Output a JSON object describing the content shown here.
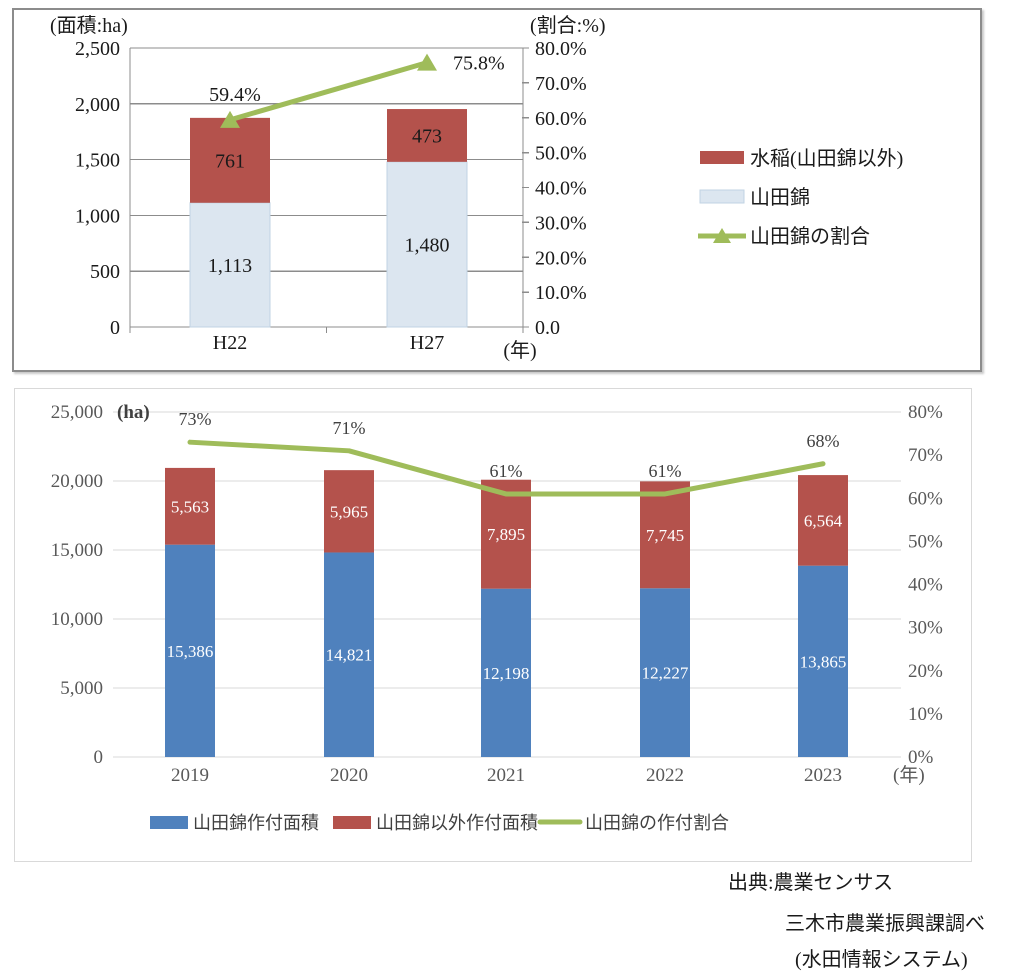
{
  "colors": {
    "red": "#b4524c",
    "blue": "#4f81bd",
    "light_blue": "#dce6f0",
    "light_blue_border": "#c1d3e3",
    "green": "#9fbc5a",
    "grid_dark": "#8c8c8c",
    "grid_light": "#d9d9d9",
    "axis_gray": "#595959",
    "label_gray": "#404040",
    "text_black": "#1a1a1a",
    "bar_label_white": "#ffffff"
  },
  "chart_data": [
    {
      "id": "heisei-comparison",
      "type": "bar",
      "categories": [
        "H22",
        "H27"
      ],
      "series": [
        {
          "name": "山田錦",
          "kind": "bar",
          "color_key": "light_blue",
          "values": [
            1113,
            1480
          ],
          "labels": [
            "1,113",
            "1,480"
          ]
        },
        {
          "name": "水稲(山田錦以外)",
          "kind": "bar",
          "color_key": "red",
          "values": [
            761,
            473
          ],
          "labels": [
            "761",
            "473"
          ]
        },
        {
          "name": "山田錦の割合",
          "kind": "line",
          "color_key": "green",
          "values": [
            59.4,
            75.8
          ],
          "labels": [
            "59.4%",
            "75.8%"
          ]
        }
      ],
      "left_axis": {
        "title": "(面積:ha)",
        "min": 0,
        "max": 2500,
        "step": 500,
        "ticks": [
          "0",
          "500",
          "1,000",
          "1,500",
          "2,000",
          "2,500"
        ]
      },
      "right_axis": {
        "title": "(割合:%)",
        "min": 0,
        "max": 80,
        "step": 10,
        "ticks": [
          "0.0%",
          "10.0%",
          "20.0%",
          "30.0%",
          "40.0%",
          "50.0%",
          "60.0%",
          "70.0%",
          "80.0%"
        ]
      },
      "x_axis": {
        "title": "(年)"
      },
      "grid": true,
      "legend_position": "right",
      "legend": [
        {
          "label": "水稲(山田錦以外)",
          "swatch": "bar",
          "color_key": "red"
        },
        {
          "label": "山田錦",
          "swatch": "bar",
          "color_key": "light_blue"
        },
        {
          "label": "山田錦の割合",
          "swatch": "line-triangle",
          "color_key": "green"
        }
      ]
    },
    {
      "id": "yearly-planting",
      "type": "bar",
      "categories": [
        "2019",
        "2020",
        "2021",
        "2022",
        "2023"
      ],
      "series": [
        {
          "name": "山田錦作付面積",
          "kind": "bar",
          "color_key": "blue",
          "values": [
            15386,
            14821,
            12198,
            12227,
            13865
          ],
          "labels": [
            "15,386",
            "14,821",
            "12,198",
            "12,227",
            "13,865"
          ]
        },
        {
          "name": "山田錦以外作付面積",
          "kind": "bar",
          "color_key": "red",
          "values": [
            5563,
            5965,
            7895,
            7745,
            6564
          ],
          "labels": [
            "5,563",
            "5,965",
            "7,895",
            "7,745",
            "6,564"
          ]
        },
        {
          "name": "山田錦の作付割合",
          "kind": "line",
          "color_key": "green",
          "values": [
            73,
            71,
            61,
            61,
            68
          ],
          "labels": [
            "73%",
            "71%",
            "61%",
            "61%",
            "68%"
          ]
        }
      ],
      "left_axis": {
        "unit": "(ha)",
        "min": 0,
        "max": 25000,
        "step": 5000,
        "ticks": [
          "0",
          "5,000",
          "10,000",
          "15,000",
          "20,000",
          "25,000"
        ]
      },
      "right_axis": {
        "min": 0,
        "max": 80,
        "step": 10,
        "ticks": [
          "0%",
          "10%",
          "20%",
          "30%",
          "40%",
          "50%",
          "60%",
          "70%",
          "80%"
        ]
      },
      "x_axis": {
        "title": "(年)"
      },
      "grid": true,
      "legend_position": "bottom",
      "legend": [
        {
          "label": "山田錦作付面積",
          "swatch": "bar",
          "color_key": "blue"
        },
        {
          "label": "山田錦以外作付面積",
          "swatch": "bar",
          "color_key": "red"
        },
        {
          "label": "山田錦の作付割合",
          "swatch": "line",
          "color_key": "green"
        }
      ]
    }
  ],
  "source": {
    "lines": [
      "出典:農業センサス",
      "三木市農業振興課調べ",
      "(水田情報システム)"
    ]
  }
}
